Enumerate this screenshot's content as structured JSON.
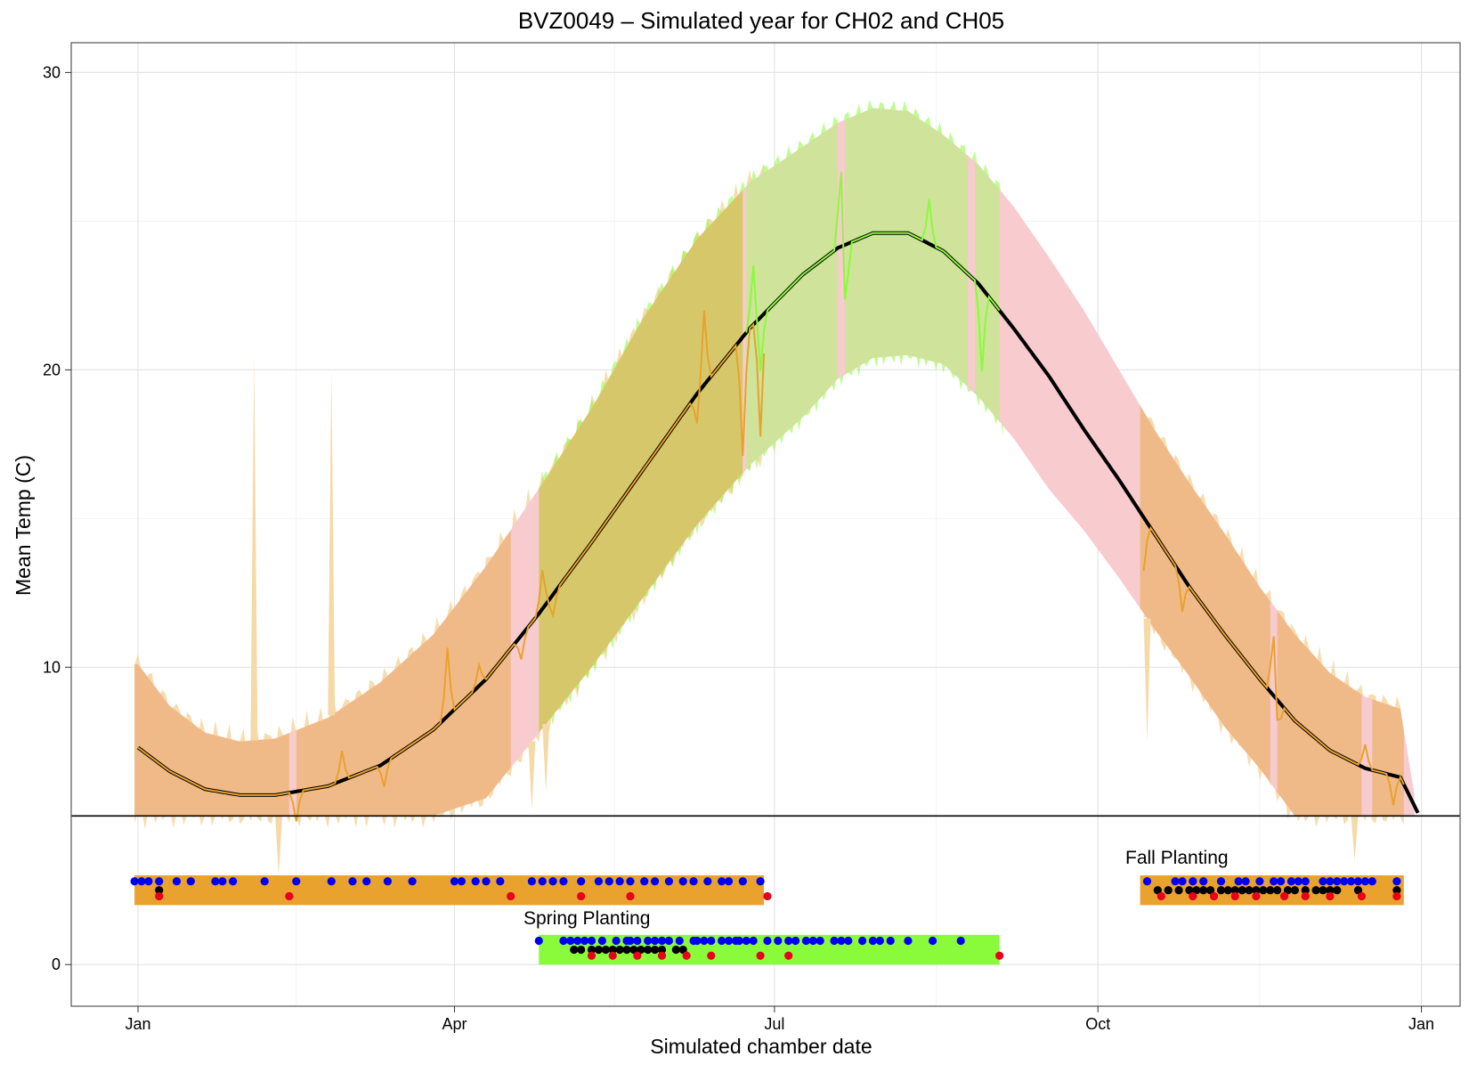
{
  "chart_data": {
    "type": "line",
    "title": "BVZ0049 – Simulated year for CH02 and CH05",
    "xlabel": "Simulated chamber date",
    "ylabel": "Mean Temp (C)",
    "x_ticks": [
      {
        "label": "Jan",
        "day": 1
      },
      {
        "label": "Apr",
        "day": 91
      },
      {
        "label": "Jul",
        "day": 182
      },
      {
        "label": "Oct",
        "day": 274
      },
      {
        "label": "Jan",
        "day": 366
      }
    ],
    "y_ticks": [
      0,
      10,
      20,
      30
    ],
    "xlim_day": [
      -18,
      377
    ],
    "ylim": [
      -1.4,
      31.0
    ],
    "grid": true,
    "threshold_temp": 5,
    "colors": {
      "orange": "#E8A22D",
      "orange_band": "#F0BA88",
      "orange_light": "#F5D9A6",
      "green": "#89FB3A",
      "green_band": "#CFE39A",
      "olive_band": "#D6C86A",
      "pink": "#F8CBCF",
      "mean_line": "#000000",
      "blue_dot": "#0000EE",
      "black_dot": "#000000",
      "red_dot": "#E8001C",
      "grid_major": "#E4E4E4",
      "grid_minor": "#F3F3F3"
    },
    "series": [
      {
        "name": "",
        "kind": "mean-line",
        "color": "#000000",
        "x_day": [
          1,
          10,
          20,
          30,
          40,
          55,
          70,
          85,
          100,
          115,
          130,
          145,
          160,
          175,
          190,
          200,
          210,
          220,
          230,
          240,
          250,
          260,
          270,
          280,
          290,
          300,
          310,
          320,
          330,
          340,
          350,
          360,
          365
        ],
        "values": [
          7.3,
          6.5,
          5.9,
          5.7,
          5.7,
          6.0,
          6.7,
          7.9,
          9.6,
          11.8,
          14.2,
          16.7,
          19.2,
          21.4,
          23.2,
          24.1,
          24.6,
          24.6,
          24.0,
          22.9,
          21.4,
          19.8,
          18.0,
          16.3,
          14.5,
          12.7,
          11.1,
          9.6,
          8.2,
          7.2,
          6.6,
          6.3,
          5.1
        ]
      },
      {
        "name": "",
        "kind": "band-upper",
        "x_day": [
          1,
          10,
          20,
          30,
          40,
          55,
          70,
          85,
          100,
          115,
          130,
          145,
          160,
          175,
          190,
          200,
          210,
          220,
          230,
          240,
          250,
          260,
          270,
          280,
          290,
          300,
          310,
          320,
          330,
          340,
          350,
          360,
          365
        ],
        "values": [
          10.1,
          8.7,
          7.8,
          7.5,
          7.6,
          8.3,
          9.5,
          11.1,
          13.4,
          16.0,
          18.7,
          21.8,
          24.4,
          26.3,
          27.5,
          28.3,
          28.8,
          28.7,
          27.9,
          26.9,
          25.5,
          23.8,
          22.0,
          20.0,
          18.0,
          16.2,
          14.5,
          12.7,
          11.1,
          9.8,
          9.0,
          8.6,
          5.0
        ]
      },
      {
        "name": "",
        "kind": "band-lower",
        "x_day": [
          1,
          10,
          20,
          30,
          40,
          55,
          70,
          85,
          100,
          115,
          130,
          145,
          160,
          175,
          190,
          200,
          210,
          220,
          230,
          240,
          250,
          260,
          270,
          280,
          290,
          300,
          310,
          320,
          330,
          340,
          350,
          360,
          365
        ],
        "values": [
          5.0,
          5.0,
          5.0,
          5.0,
          5.0,
          5.0,
          5.0,
          5.0,
          5.6,
          7.8,
          10.0,
          12.4,
          14.8,
          16.8,
          18.4,
          19.7,
          20.4,
          20.5,
          20.2,
          19.1,
          17.7,
          16.0,
          14.6,
          13.0,
          11.3,
          9.7,
          8.0,
          6.6,
          5.0,
          5.0,
          5.0,
          5.0,
          5.0
        ]
      }
    ],
    "annotations": [
      {
        "text": "Spring Planting"
      },
      {
        "text": "Fall Planting"
      }
    ],
    "planting_bars": [
      {
        "name": "orange-spring",
        "color": "#E8A22D",
        "start_day": 0,
        "end_day": 179,
        "y_min": 2.0,
        "y_max": 3.0
      },
      {
        "name": "spring-green",
        "color": "#89FB3A",
        "start_day": 115,
        "end_day": 246,
        "y_min": 0.0,
        "y_max": 1.0
      },
      {
        "name": "fall-orange",
        "color": "#E8A22D",
        "start_day": 286,
        "end_day": 361,
        "y_min": 2.0,
        "y_max": 3.0
      }
    ],
    "event_dots": {
      "blue": [
        {
          "y": 2.8,
          "days": [
            0,
            2,
            4,
            7,
            12,
            16,
            23,
            25,
            28,
            37,
            46,
            56,
            62,
            66,
            72,
            79,
            91,
            93,
            97,
            100,
            104,
            113,
            116,
            119,
            122,
            127,
            132,
            135,
            138,
            141,
            145,
            148,
            152,
            156,
            159,
            163,
            167,
            169,
            173,
            178,
            288,
            296,
            298,
            301,
            304,
            309,
            314,
            316,
            320,
            324,
            326,
            329,
            331,
            333,
            338,
            340,
            342,
            344,
            346,
            348,
            350,
            352,
            359
          ]
        },
        {
          "y": 0.8,
          "days": [
            115,
            122,
            124,
            126,
            128,
            130,
            133,
            137,
            140,
            141,
            143,
            146,
            148,
            150,
            152,
            155,
            159,
            160,
            162,
            164,
            167,
            169,
            171,
            172,
            174,
            176,
            180,
            183,
            186,
            188,
            191,
            193,
            195,
            199,
            201,
            203,
            207,
            210,
            212,
            215,
            220,
            227,
            235
          ]
        }
      ],
      "black": [
        {
          "y": 2.5,
          "days": [
            7,
            291,
            294,
            297,
            300,
            302,
            304,
            306,
            309,
            311,
            313,
            315,
            317,
            319,
            321,
            323,
            325,
            328,
            330,
            333,
            336,
            338,
            340,
            342,
            348,
            359
          ]
        },
        {
          "y": 0.5,
          "days": [
            125,
            127,
            130,
            132,
            134,
            136,
            138,
            140,
            142,
            144,
            146,
            148,
            150,
            154,
            156
          ]
        }
      ],
      "red": [
        {
          "y": 2.3,
          "days": [
            7,
            44,
            107,
            127,
            141,
            180,
            292,
            301,
            307,
            313,
            319,
            327,
            333,
            340,
            349,
            359
          ]
        },
        {
          "y": 0.3,
          "days": [
            130,
            136,
            143,
            150,
            157,
            164,
            178,
            186,
            246
          ]
        }
      ]
    }
  }
}
